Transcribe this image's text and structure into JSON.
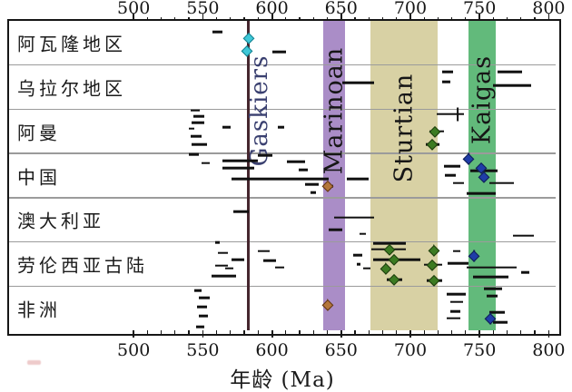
{
  "chart_data": {
    "type": "scatter",
    "subtype": "age-interval-ranges-by-region",
    "title": "",
    "xlabel": "年龄 (Ma)",
    "x_axis": {
      "min": 410,
      "max": 805,
      "tick_major": [
        500,
        550,
        600,
        650,
        700,
        750,
        800
      ],
      "tick_minor_step": 10,
      "tick_minor_from": 500,
      "tick_minor_to": 800,
      "ticks_on_top_and_bottom": true
    },
    "rows": [
      "阿瓦隆地区",
      "乌拉尔地区",
      "阿曼",
      "中国",
      "澳大利亚",
      "劳伦西亚古陆",
      "非洲"
    ],
    "events": [
      {
        "name": "Gaskiers",
        "kind": "line",
        "ma": 583,
        "color": "#45262e",
        "label_color": "#3a4070",
        "label_cy": 0.29
      },
      {
        "name": "Marinoan",
        "kind": "band",
        "ma": [
          637,
          653
        ],
        "color": "#aa8dc7",
        "label_color": "#161616",
        "label_cy": 0.29
      },
      {
        "name": "Sturtian",
        "kind": "band",
        "ma": [
          671,
          720
        ],
        "color": "#d8d1a4",
        "label_color": "#161616",
        "label_cy": 0.345
      },
      {
        "name": "Kaigas",
        "kind": "band",
        "ma": [
          742,
          762
        ],
        "color": "#62ba7b",
        "label_color": "#161616",
        "label_cy": 0.255
      }
    ],
    "bars_format": "[row_index, age_start_Ma, age_end_Ma, y_fraction_in_row]",
    "bars": [
      [
        0,
        557,
        564,
        0.25
      ],
      [
        0,
        600,
        610,
        0.7
      ],
      [
        1,
        651,
        674,
        0.4
      ],
      [
        1,
        723,
        731,
        0.15
      ],
      [
        1,
        723,
        729,
        0.38
      ],
      [
        1,
        763,
        781,
        0.15
      ],
      [
        1,
        760,
        787,
        0.46
      ],
      [
        2,
        541,
        548,
        0.03
      ],
      [
        2,
        543,
        551,
        0.16
      ],
      [
        2,
        542,
        551,
        0.3
      ],
      [
        2,
        540,
        544,
        0.44
      ],
      [
        2,
        541,
        549,
        0.61
      ],
      [
        2,
        542,
        553,
        0.79
      ],
      [
        2,
        564,
        570,
        0.4
      ],
      [
        2,
        604,
        609,
        0.4
      ],
      [
        2,
        719,
        739,
        0.11
      ],
      [
        3,
        540,
        547,
        0.02
      ],
      [
        3,
        590,
        600,
        0.04
      ],
      [
        3,
        564,
        590,
        0.16
      ],
      [
        3,
        611,
        624,
        0.18
      ],
      [
        3,
        549,
        555,
        0.22
      ],
      [
        3,
        724,
        736,
        0.29
      ],
      [
        3,
        564,
        587,
        0.33
      ],
      [
        3,
        619,
        626,
        0.37
      ],
      [
        3,
        743,
        763,
        0.39
      ],
      [
        3,
        725,
        733,
        0.49
      ],
      [
        3,
        571,
        641,
        0.57
      ],
      [
        3,
        654,
        670,
        0.57
      ],
      [
        3,
        731,
        739,
        0.67
      ],
      [
        3,
        757,
        775,
        0.67
      ],
      [
        3,
        624,
        634,
        0.7
      ],
      [
        3,
        628,
        632,
        0.88
      ],
      [
        3,
        741,
        762,
        0.9
      ],
      [
        4,
        572,
        583,
        0.31
      ],
      [
        4,
        645,
        674,
        0.45
      ],
      [
        4,
        641,
        651,
        0.72
      ],
      [
        4,
        663,
        668,
        0.82
      ],
      [
        4,
        774,
        789,
        0.86
      ],
      [
        5,
        559,
        562,
        0.01
      ],
      [
        5,
        561,
        568,
        0.25
      ],
      [
        5,
        571,
        580,
        0.4
      ],
      [
        5,
        559,
        568,
        0.54
      ],
      [
        5,
        566,
        572,
        0.6
      ],
      [
        5,
        556,
        574,
        0.77
      ],
      [
        5,
        590,
        598,
        0.21
      ],
      [
        5,
        594,
        603,
        0.42
      ],
      [
        5,
        602,
        609,
        0.58
      ],
      [
        5,
        659,
        665,
        0.3
      ],
      [
        5,
        661,
        664,
        0.5
      ],
      [
        5,
        666,
        671,
        0.6
      ],
      [
        5,
        673,
        697,
        0.03
      ],
      [
        5,
        731,
        736,
        0.21
      ],
      [
        5,
        727,
        742,
        0.48
      ],
      [
        5,
        741,
        777,
        0.58
      ],
      [
        5,
        780,
        786,
        0.69
      ],
      [
        5,
        745,
        771,
        0.79
      ],
      [
        6,
        544,
        549,
        0.1
      ],
      [
        6,
        547,
        555,
        0.26
      ],
      [
        6,
        546,
        553,
        0.47
      ],
      [
        6,
        547,
        554,
        0.67
      ],
      [
        6,
        545,
        551,
        0.92
      ],
      [
        6,
        726,
        740,
        0.18
      ],
      [
        6,
        729,
        738,
        0.36
      ],
      [
        6,
        729,
        736,
        0.57
      ],
      [
        6,
        726,
        736,
        0.73
      ],
      [
        6,
        753,
        766,
        0.06
      ],
      [
        6,
        755,
        763,
        0.22
      ],
      [
        6,
        757,
        768,
        0.59
      ],
      [
        6,
        760,
        770,
        0.82
      ]
    ],
    "bar_cross_ticks": [
      {
        "row": 2,
        "ma": 734,
        "y": 0.11
      }
    ],
    "diamonds_format": "row, age_Ma, y_fraction_in_row, color_key, optional error bar range, optional vertical whisker",
    "diamonds": [
      {
        "row": 0,
        "ma": 583,
        "y": 0.4,
        "c": "cyan"
      },
      {
        "row": 0,
        "ma": 582,
        "y": 0.68,
        "c": "cyan"
      },
      {
        "row": 2,
        "ma": 718,
        "y": 0.5,
        "c": "green",
        "bar": [
          714,
          724
        ]
      },
      {
        "row": 2,
        "ma": 716,
        "y": 0.79,
        "c": "green",
        "bar": [
          711,
          721
        ]
      },
      {
        "row": 3,
        "ma": 640,
        "y": 0.74,
        "c": "brown",
        "bar": [
          637,
          644
        ]
      },
      {
        "row": 3,
        "ma": 742,
        "y": 0.12,
        "c": "blue",
        "v": 1
      },
      {
        "row": 3,
        "ma": 751,
        "y": 0.33,
        "c": "blue"
      },
      {
        "row": 3,
        "ma": 753,
        "y": 0.53,
        "c": "blue"
      },
      {
        "row": 5,
        "ma": 685,
        "y": 0.17,
        "c": "green",
        "bar": [
          672,
          697
        ]
      },
      {
        "row": 5,
        "ma": 688,
        "y": 0.4,
        "c": "green",
        "bar": [
          673,
          707
        ]
      },
      {
        "row": 5,
        "ma": 682,
        "y": 0.6,
        "c": "green",
        "v": 1
      },
      {
        "row": 5,
        "ma": 688,
        "y": 0.85,
        "c": "green",
        "bar": [
          683,
          694
        ]
      },
      {
        "row": 5,
        "ma": 717,
        "y": 0.19,
        "c": "green",
        "v": 1
      },
      {
        "row": 5,
        "ma": 716,
        "y": 0.52,
        "c": "green",
        "bar": [
          710,
          723
        ]
      },
      {
        "row": 5,
        "ma": 717,
        "y": 0.87,
        "c": "green",
        "bar": [
          712,
          723
        ]
      },
      {
        "row": 5,
        "ma": 746,
        "y": 0.32,
        "c": "blue",
        "v": 1
      },
      {
        "row": 6,
        "ma": 640,
        "y": 0.43,
        "c": "brown",
        "v": 1
      },
      {
        "row": 6,
        "ma": 758,
        "y": 0.73,
        "c": "blue",
        "v": 1
      }
    ],
    "marker_colors": {
      "cyan": {
        "fill": "#3fc8d8",
        "stroke": "#157f8d"
      },
      "green": {
        "fill": "#3c7b22",
        "stroke": "#1e3c0e"
      },
      "blue": {
        "fill": "#1f3da8",
        "stroke": "#101f52"
      },
      "brown": {
        "fill": "#b4763c",
        "stroke": "#5f3514"
      }
    },
    "bar_color": "#111111",
    "grid_color": "#9b9b9b",
    "legend_position": "in-plot vertical band labels"
  }
}
